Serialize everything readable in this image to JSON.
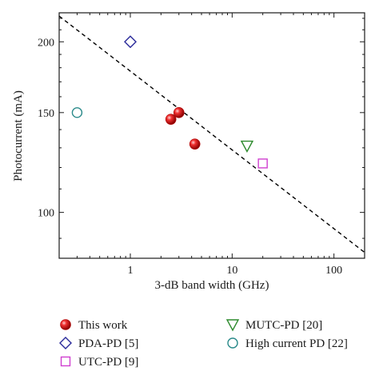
{
  "chart_data": {
    "type": "scatter",
    "xlabel": "3-dB band width (GHz)",
    "ylabel": "Photocurrent (mA)",
    "xscale": "log",
    "yscale": "log",
    "xlim": [
      0.2,
      200
    ],
    "ylim": [
      83,
      225
    ],
    "xticks": [
      {
        "value": 1,
        "label": "1"
      },
      {
        "value": 10,
        "label": "10"
      },
      {
        "value": 100,
        "label": "100"
      }
    ],
    "yticks": [
      {
        "value": 100,
        "label": "100"
      },
      {
        "value": 150,
        "label": "150"
      },
      {
        "value": 200,
        "label": "200"
      }
    ],
    "grid": false,
    "legend_position": "below",
    "series": [
      {
        "name": "This work",
        "marker": "sphere",
        "color": "#e02020",
        "points": [
          {
            "x": 2.5,
            "y": 146
          },
          {
            "x": 3.0,
            "y": 150
          },
          {
            "x": 4.3,
            "y": 132
          }
        ]
      },
      {
        "name": "PDA-PD [5]",
        "marker": "diamond",
        "color": "#2a2a9a",
        "points": [
          {
            "x": 1.0,
            "y": 200
          }
        ]
      },
      {
        "name": "UTC-PD [9]",
        "marker": "square",
        "color": "#d040d0",
        "points": [
          {
            "x": 20,
            "y": 122
          }
        ]
      },
      {
        "name": "MUTC-PD [20]",
        "marker": "triangle-down",
        "color": "#2e8b2e",
        "points": [
          {
            "x": 14,
            "y": 131
          }
        ]
      },
      {
        "name": "High current PD [22]",
        "marker": "circle",
        "color": "#2a8a8a",
        "points": [
          {
            "x": 0.3,
            "y": 150
          }
        ]
      }
    ],
    "trend_line": {
      "style": "dashed",
      "color": "#000000",
      "points": [
        {
          "x": 0.2,
          "y": 222
        },
        {
          "x": 200,
          "y": 85
        }
      ]
    }
  }
}
